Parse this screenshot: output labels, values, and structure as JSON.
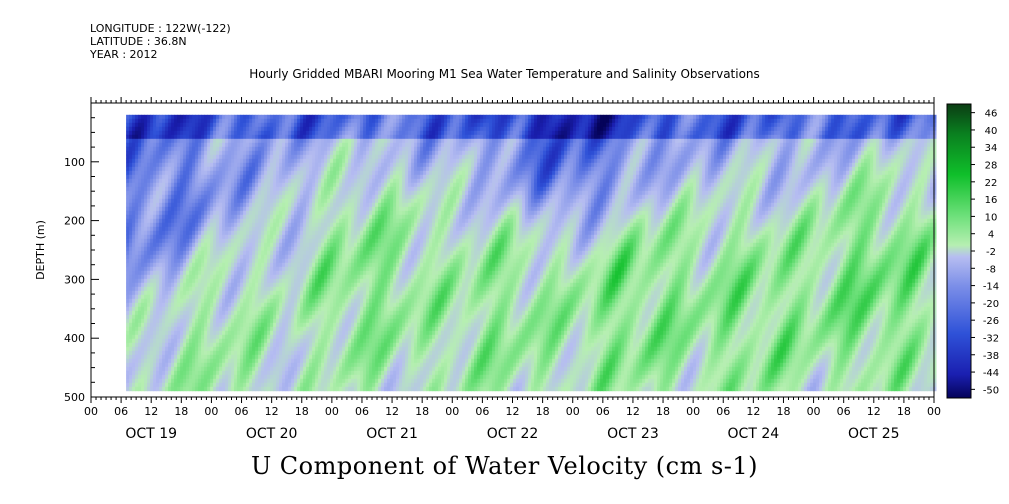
{
  "header": {
    "longitude": "LONGITUDE : 122W(-122)",
    "latitude": "LATITUDE : 36.8N",
    "year": "YEAR : 2012"
  },
  "chart_data": {
    "type": "heatmap",
    "title": "Hourly Gridded MBARI Mooring M1 Sea Water Temperature and Salinity Observations",
    "variable_title": "U Component of Water Velocity (cm s-1)",
    "ylabel": "DEPTH (m)",
    "ylim": [
      500,
      0
    ],
    "yticks": [
      100,
      200,
      300,
      400,
      500
    ],
    "x_hour_ticks": [
      "00",
      "06",
      "12",
      "18",
      "00",
      "06",
      "12",
      "18",
      "00",
      "06",
      "12",
      "18",
      "00",
      "06",
      "12",
      "18",
      "00",
      "06",
      "12",
      "18",
      "00",
      "06",
      "12",
      "18",
      "00",
      "06",
      "12",
      "18",
      "00"
    ],
    "days": [
      "OCT 19",
      "OCT 20",
      "OCT 21",
      "OCT 22",
      "OCT 23",
      "OCT 24",
      "OCT 25"
    ],
    "colorbar": {
      "levels": [
        "46",
        "40",
        "34",
        "28",
        "22",
        "16",
        "10",
        "4",
        "-2",
        "-8",
        "-14",
        "-20",
        "-26",
        "-32",
        "-38",
        "-44",
        "-50"
      ],
      "range": [
        -50,
        52
      ],
      "colors": {
        "max": "#0b3d14",
        "high": "#0fbf2a",
        "mid_pos": "#b6efb1",
        "mid_neg": "#b6bdf1",
        "low": "#2b49d6",
        "min": "#05035a"
      }
    },
    "data_extent": {
      "time_start": "OCT 19 07",
      "time_end": "OCT 26 00",
      "depth_top": 20,
      "depth_bottom": 485
    },
    "description_fields": [
      {
        "time_day": 0.5,
        "depth": 150,
        "u": -22
      },
      {
        "time_day": 1.0,
        "depth": 400,
        "u": 12
      },
      {
        "time_day": 2.3,
        "depth": 300,
        "u": 18
      },
      {
        "time_day": 3.4,
        "depth": 350,
        "u": 16
      },
      {
        "time_day": 4.0,
        "depth": 30,
        "u": -28
      },
      {
        "time_day": 4.5,
        "depth": 330,
        "u": 20
      },
      {
        "time_day": 5.5,
        "depth": 350,
        "u": 18
      },
      {
        "time_day": 6.5,
        "depth": 300,
        "u": 22
      }
    ]
  }
}
